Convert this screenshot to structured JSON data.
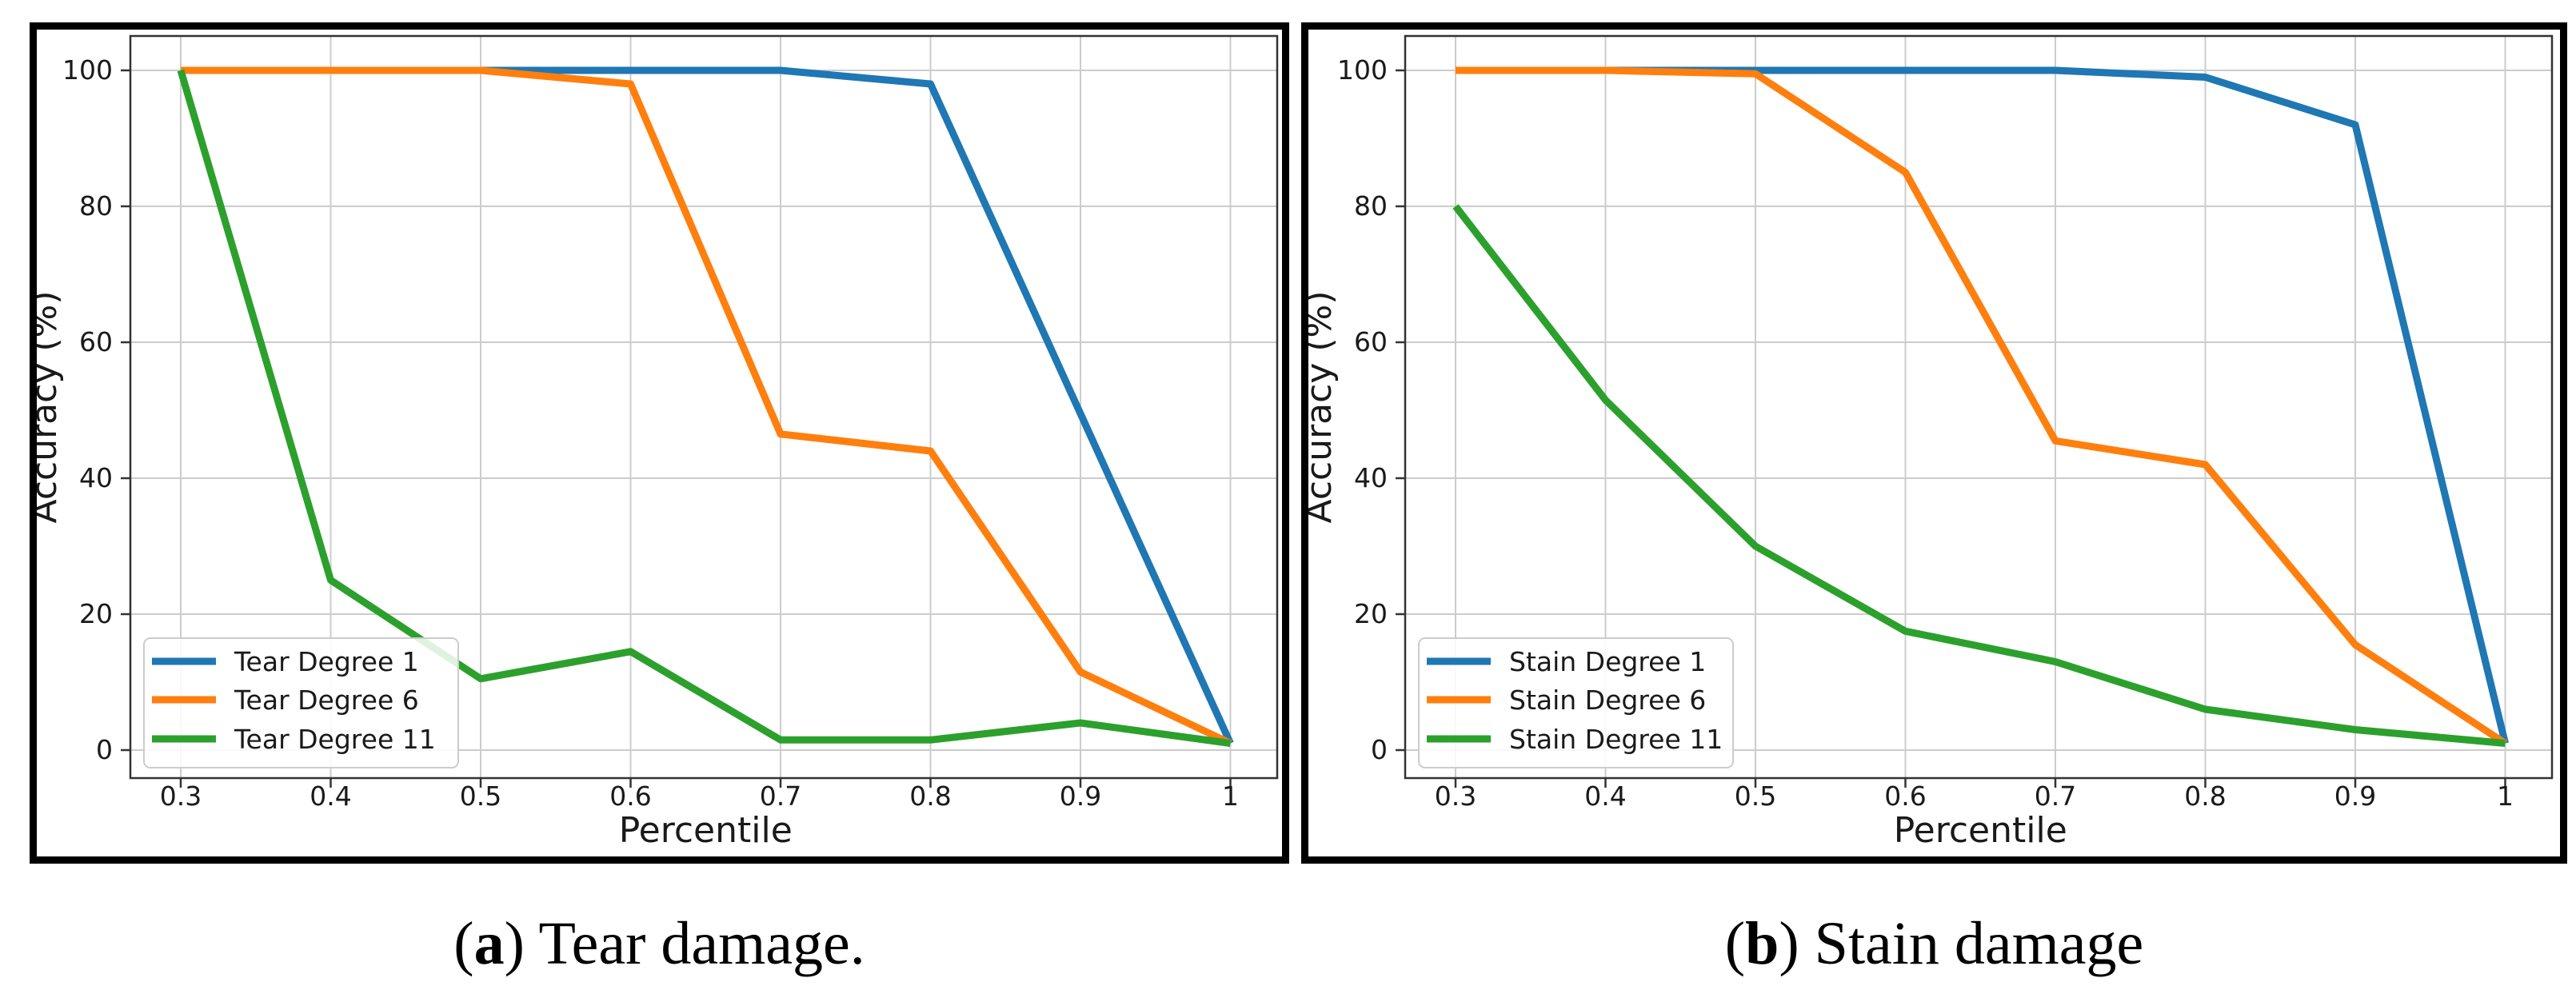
{
  "figure": {
    "background": "#ffffff",
    "panel_border_color": "#000000"
  },
  "colors": {
    "blue": "#1f77b4",
    "orange": "#ff7f0e",
    "green": "#2ca02c",
    "grid": "#cccccc",
    "spine": "#333333",
    "text": "#1a1a1a",
    "legend_border": "#cccccc",
    "legend_bg": "rgba(255,255,255,0.85)"
  },
  "axes": {
    "xlabel": "Percentile",
    "ylabel": "Accuracy (%)",
    "x_tick_labels": [
      "0.3",
      "0.4",
      "0.5",
      "0.6",
      "0.7",
      "0.8",
      "0.9",
      "1"
    ],
    "x_ticks": [
      0.3,
      0.4,
      0.5,
      0.6,
      0.7,
      0.8,
      0.9,
      1.0
    ],
    "y_tick_labels": [
      "0",
      "20",
      "40",
      "60",
      "80",
      "100"
    ],
    "y_ticks": [
      0,
      20,
      40,
      60,
      80,
      100
    ],
    "xlim": [
      0.266,
      1.032
    ],
    "ylim": [
      -4,
      105
    ],
    "grid": true,
    "legend_position": "lower-left"
  },
  "chart_data": [
    {
      "id": "tear",
      "type": "line",
      "x": [
        0.3,
        0.4,
        0.5,
        0.6,
        0.7,
        0.8,
        0.9,
        1.0
      ],
      "series": [
        {
          "name": "Tear Degree 1",
          "color_key": "blue",
          "values": [
            100,
            100,
            100,
            100,
            100,
            98,
            49.5,
            1
          ]
        },
        {
          "name": "Tear Degree 6",
          "color_key": "orange",
          "values": [
            100,
            100,
            100,
            98,
            46.5,
            44,
            11.5,
            1
          ]
        },
        {
          "name": "Tear Degree 11",
          "color_key": "green",
          "values": [
            100,
            25,
            10.5,
            14.5,
            1.5,
            1.5,
            4,
            1
          ]
        }
      ],
      "caption": {
        "letter": "a",
        "text": " Tear damage."
      }
    },
    {
      "id": "stain",
      "type": "line",
      "x": [
        0.3,
        0.4,
        0.5,
        0.6,
        0.7,
        0.8,
        0.9,
        1.0
      ],
      "series": [
        {
          "name": "Stain Degree 1",
          "color_key": "blue",
          "values": [
            100,
            100,
            100,
            100,
            100,
            99,
            92,
            1
          ]
        },
        {
          "name": "Stain Degree 6",
          "color_key": "orange",
          "values": [
            100,
            100,
            99.5,
            85,
            45.5,
            42,
            15.5,
            1
          ]
        },
        {
          "name": "Stain Degree 11",
          "color_key": "green",
          "values": [
            80,
            51.5,
            30,
            17.5,
            13,
            6,
            3,
            1
          ]
        }
      ],
      "caption": {
        "letter": "b",
        "text": " Stain damage"
      }
    }
  ]
}
